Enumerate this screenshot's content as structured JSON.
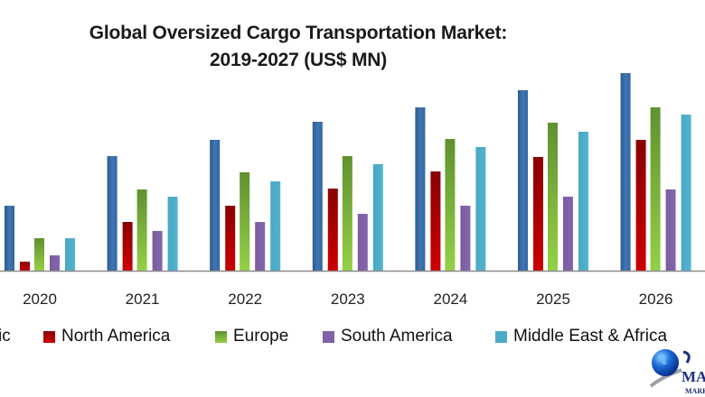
{
  "chart_data": {
    "type": "bar",
    "title": "Global Oversized Cargo Transportation Market: 2019-2027 (US$ MN)",
    "title_lines": [
      "Global Oversized Cargo Transportation Market:",
      "2019-2027 (US$ MN)"
    ],
    "xlabel": "",
    "ylabel": "",
    "y_axis_shown": false,
    "grid": false,
    "ylim": [
      0,
      230
    ],
    "value_note": "No y-axis values shown; values are relative bar heights estimated from the image",
    "categories": [
      "2020",
      "2021",
      "2022",
      "2023",
      "2024",
      "2025",
      "2026"
    ],
    "series": [
      {
        "name": "Asia Pacific",
        "legend_visible_text": "ic",
        "color": "#3a6ea8",
        "values": [
          72,
          127,
          145,
          165,
          181,
          200,
          219
        ]
      },
      {
        "name": "North America",
        "color": "#c00000",
        "values": [
          10,
          54,
          72,
          91,
          110,
          126,
          145
        ]
      },
      {
        "name": "Europe",
        "color": "#7ab33a",
        "values": [
          36,
          90,
          109,
          127,
          146,
          164,
          181
        ]
      },
      {
        "name": "South America",
        "color": "#7f62a6",
        "values": [
          17,
          44,
          54,
          63,
          72,
          82,
          90
        ]
      },
      {
        "name": "Middle East & Africa",
        "color": "#4bacc6",
        "values": [
          36,
          82,
          99,
          118,
          137,
          154,
          173
        ]
      }
    ],
    "legend_position": "bottom"
  },
  "legend": {
    "items": [
      {
        "label": "ic",
        "color": "#3a6ea8"
      },
      {
        "label": "North America",
        "color": "#c00000"
      },
      {
        "label": "Europe",
        "color": "#7ab33a"
      },
      {
        "label": "South America",
        "color": "#7f62a6"
      },
      {
        "label": "Middle East & Africa",
        "color": "#4bacc6"
      }
    ]
  },
  "logo": {
    "text_top": "MA",
    "text_bottom": "MARK"
  }
}
